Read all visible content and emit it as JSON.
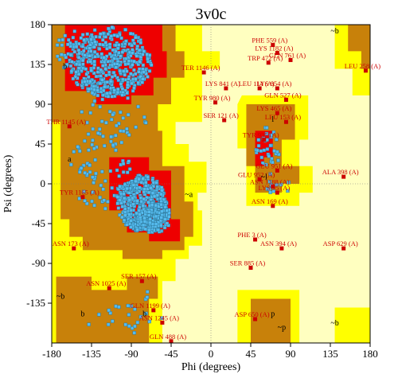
{
  "chart_data": {
    "type": "scatter",
    "title": "3v0c",
    "xlabel": "Phi (degrees)",
    "ylabel": "Psi (degrees)",
    "xlim": [
      -180,
      180
    ],
    "ylim": [
      -180,
      180
    ],
    "x_ticks": [
      -180,
      -135,
      -90,
      -45,
      0,
      45,
      90,
      135,
      180
    ],
    "y_ticks": [
      -135,
      -90,
      -45,
      0,
      45,
      90,
      135,
      180
    ],
    "x_tick_labels": [
      "-180",
      "-135",
      "-90",
      "-45",
      "0",
      "45",
      "90",
      "135",
      "180"
    ],
    "y_tick_labels": [
      "-135",
      "-90",
      "-45",
      "0",
      "45",
      "90",
      "135",
      "180"
    ],
    "colors": {
      "core": "#ee0000",
      "allowed": "#c8810a",
      "generous": "#ffff00",
      "disallowed": "#ffffc0",
      "residue": "#55bbee",
      "outlier": "#cc0000"
    },
    "region_labels": [
      {
        "text": "b",
        "x": -165,
        "y": 130
      },
      {
        "text": "a",
        "x": -160,
        "y": 25
      },
      {
        "text": "~a",
        "x": -25,
        "y": -15
      },
      {
        "text": "l",
        "x": 70,
        "y": 70
      },
      {
        "text": "~l",
        "x": 60,
        "y": 5
      },
      {
        "text": "~b",
        "x": 140,
        "y": 170
      },
      {
        "text": "~b",
        "x": -170,
        "y": -130
      },
      {
        "text": "b",
        "x": -145,
        "y": -150
      },
      {
        "text": "b",
        "x": -75,
        "y": -150
      },
      {
        "text": "p",
        "x": 70,
        "y": -150
      },
      {
        "text": "~p",
        "x": 80,
        "y": -165
      },
      {
        "text": "~b",
        "x": 140,
        "y": -160
      }
    ],
    "outliers": [
      {
        "label": "THR 1145 (A)",
        "x": -160,
        "y": 65
      },
      {
        "label": "TYR 1165 (A)",
        "x": -145,
        "y": -15
      },
      {
        "label": "ASN 173 (A)",
        "x": -155,
        "y": -73
      },
      {
        "label": "ASN 1025 (A)",
        "x": -115,
        "y": -118
      },
      {
        "label": "SER 157 (A)",
        "x": -78,
        "y": -110
      },
      {
        "label": "GLN 1199 (A)",
        "x": -65,
        "y": -143
      },
      {
        "label": "ASN 1245 (A)",
        "x": -55,
        "y": -157
      },
      {
        "label": "GLN 488 (A)",
        "x": -45,
        "y": -178
      },
      {
        "label": "TER 1146 (A)",
        "x": -8,
        "y": 126
      },
      {
        "label": "LYS 841 (A)",
        "x": 17,
        "y": 108
      },
      {
        "label": "TYR 980 (A)",
        "x": 5,
        "y": 92
      },
      {
        "label": "SER 121 (A)",
        "x": 15,
        "y": 72
      },
      {
        "label": "TYR 935 (A)",
        "x": 60,
        "y": 50
      },
      {
        "label": "PHE 559 (A)",
        "x": 70,
        "y": 157
      },
      {
        "label": "LYS 1182 (A)",
        "x": 75,
        "y": 148
      },
      {
        "label": "TRP 472 (A)",
        "x": 65,
        "y": 137
      },
      {
        "label": "GLN 761 (A)",
        "x": 90,
        "y": 140
      },
      {
        "label": "LEU 114 (A)",
        "x": 55,
        "y": 108
      },
      {
        "label": "LYS 854 (A)",
        "x": 75,
        "y": 108
      },
      {
        "label": "GLN 527 (A)",
        "x": 85,
        "y": 95
      },
      {
        "label": "LYS 465 (A)",
        "x": 75,
        "y": 80
      },
      {
        "label": "LEU 153 (A)",
        "x": 85,
        "y": 70
      },
      {
        "label": "GLU 951 (A)",
        "x": 75,
        "y": 15
      },
      {
        "label": "GLU 952 (A)",
        "x": 55,
        "y": 5
      },
      {
        "label": "ASN 1188 (A)",
        "x": 70,
        "y": -3
      },
      {
        "label": "LYS 95 (A)",
        "x": 75,
        "y": -10
      },
      {
        "label": "ASN 169 (A)",
        "x": 70,
        "y": -25
      },
      {
        "label": "ALA 398 (A)",
        "x": 150,
        "y": 8
      },
      {
        "label": "PHE 3 (A)",
        "x": 50,
        "y": -63
      },
      {
        "label": "ASN 394 (A)",
        "x": 80,
        "y": -73
      },
      {
        "label": "ASP 629 (A)",
        "x": 150,
        "y": -73
      },
      {
        "label": "SER 885 (A)",
        "x": 45,
        "y": -95
      },
      {
        "label": "ASP 650 (A)",
        "x": 50,
        "y": -153
      },
      {
        "label": "LEU 258 (A)",
        "x": 175,
        "y": 128
      }
    ]
  }
}
